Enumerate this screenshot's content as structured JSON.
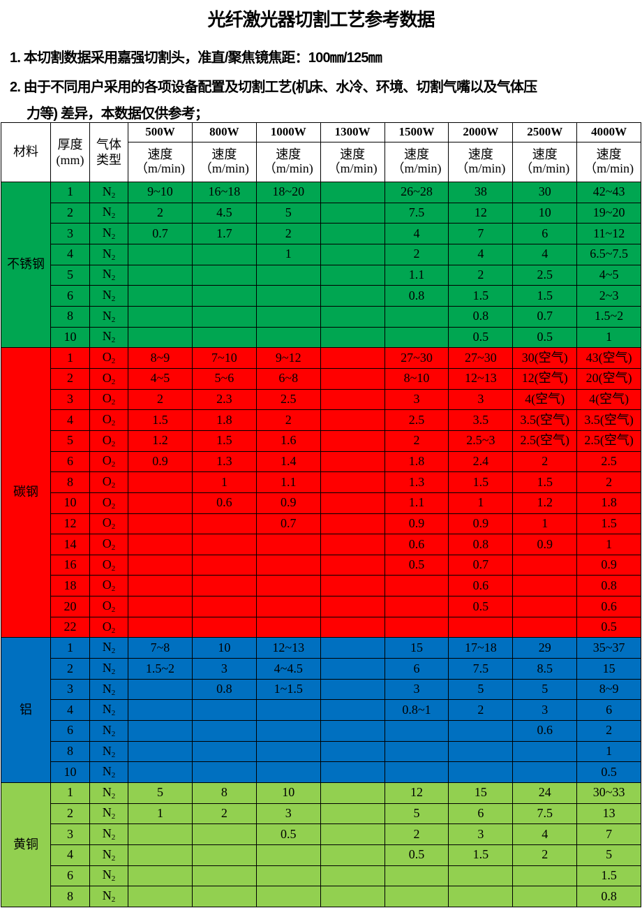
{
  "title": "光纤激光器切割工艺参考数据",
  "notes": [
    "1. 本切割数据采用嘉强切割头，准直/聚焦镜焦距：100㎜/125㎜",
    "2. 由于不同用户采用的各项设备配置及切割工艺(机床、水冷、环境、切割气嘴以及气体压",
    "力等) 差异，本数据仅供参考；"
  ],
  "headers": {
    "material": "材料",
    "thickness": "厚度(mm)",
    "gas": "气体类型",
    "speed": "速度",
    "unit": "（m/min)",
    "powers": [
      "500W",
      "800W",
      "1000W",
      "1300W",
      "1500W",
      "2000W",
      "2500W",
      "4000W"
    ]
  },
  "groups": [
    {
      "material": "不锈钢",
      "color": "#00a651",
      "gas": "N",
      "gas_sub": "2",
      "rows": [
        [
          "1",
          "9~10",
          "16~18",
          "18~20",
          "",
          "26~28",
          "38",
          "30",
          "42~43"
        ],
        [
          "2",
          "2",
          "4.5",
          "5",
          "",
          "7.5",
          "12",
          "10",
          "19~20"
        ],
        [
          "3",
          "0.7",
          "1.7",
          "2",
          "",
          "4",
          "7",
          "6",
          "11~12"
        ],
        [
          "4",
          "",
          "",
          "1",
          "",
          "2",
          "4",
          "4",
          "6.5~7.5"
        ],
        [
          "5",
          "",
          "",
          "",
          "",
          "1.1",
          "2",
          "2.5",
          "4~5"
        ],
        [
          "6",
          "",
          "",
          "",
          "",
          "0.8",
          "1.5",
          "1.5",
          "2~3"
        ],
        [
          "8",
          "",
          "",
          "",
          "",
          "",
          "0.8",
          "0.7",
          "1.5~2"
        ],
        [
          "10",
          "",
          "",
          "",
          "",
          "",
          "0.5",
          "0.5",
          "1"
        ]
      ]
    },
    {
      "material": "碳钢",
      "color": "#ff0000",
      "gas": "O",
      "gas_sub": "2",
      "rows": [
        [
          "1",
          "8~9",
          "7~10",
          "9~12",
          "",
          "27~30",
          "27~30",
          "30(空气)",
          "43(空气)"
        ],
        [
          "2",
          "4~5",
          "5~6",
          "6~8",
          "",
          "8~10",
          "12~13",
          "12(空气)",
          "20(空气)"
        ],
        [
          "3",
          "2",
          "2.3",
          "2.5",
          "",
          "3",
          "3",
          "4(空气)",
          "4(空气)"
        ],
        [
          "4",
          "1.5",
          "1.8",
          "2",
          "",
          "2.5",
          "3.5",
          "3.5(空气)",
          "3.5(空气)"
        ],
        [
          "5",
          "1.2",
          "1.5",
          "1.6",
          "",
          "2",
          "2.5~3",
          "2.5(空气)",
          "2.5(空气)"
        ],
        [
          "6",
          "0.9",
          "1.3",
          "1.4",
          "",
          "1.8",
          "2.4",
          "2",
          "2.5"
        ],
        [
          "8",
          "",
          "1",
          "1.1",
          "",
          "1.3",
          "1.5",
          "1.5",
          "2"
        ],
        [
          "10",
          "",
          "0.6",
          "0.9",
          "",
          "1.1",
          "1",
          "1.2",
          "1.8"
        ],
        [
          "12",
          "",
          "",
          "0.7",
          "",
          "0.9",
          "0.9",
          "1",
          "1.5"
        ],
        [
          "14",
          "",
          "",
          "",
          "",
          "0.6",
          "0.8",
          "0.9",
          "1"
        ],
        [
          "16",
          "",
          "",
          "",
          "",
          "0.5",
          "0.7",
          "",
          "0.9"
        ],
        [
          "18",
          "",
          "",
          "",
          "",
          "",
          "0.6",
          "",
          "0.8"
        ],
        [
          "20",
          "",
          "",
          "",
          "",
          "",
          "0.5",
          "",
          "0.6"
        ],
        [
          "22",
          "",
          "",
          "",
          "",
          "",
          "",
          "",
          "0.5"
        ]
      ]
    },
    {
      "material": "铝",
      "color": "#0070c0",
      "gas": "N",
      "gas_sub": "2",
      "rows": [
        [
          "1",
          "7~8",
          "10",
          "12~13",
          "",
          "15",
          "17~18",
          "29",
          "35~37"
        ],
        [
          "2",
          "1.5~2",
          "3",
          "4~4.5",
          "",
          "6",
          "7.5",
          "8.5",
          "15"
        ],
        [
          "3",
          "",
          "0.8",
          "1~1.5",
          "",
          "3",
          "5",
          "5",
          "8~9"
        ],
        [
          "4",
          "",
          "",
          "",
          "",
          "0.8~1",
          "2",
          "3",
          "6"
        ],
        [
          "6",
          "",
          "",
          "",
          "",
          "",
          "",
          "0.6",
          "2"
        ],
        [
          "8",
          "",
          "",
          "",
          "",
          "",
          "",
          "",
          "1"
        ],
        [
          "10",
          "",
          "",
          "",
          "",
          "",
          "",
          "",
          "0.5"
        ]
      ]
    },
    {
      "material": "黄铜",
      "color": "#92d050",
      "gas": "N",
      "gas_sub": "2",
      "rows": [
        [
          "1",
          "5",
          "8",
          "10",
          "",
          "12",
          "15",
          "24",
          "30~33"
        ],
        [
          "2",
          "1",
          "2",
          "3",
          "",
          "5",
          "6",
          "7.5",
          "13"
        ],
        [
          "3",
          "",
          "",
          "0.5",
          "",
          "2",
          "3",
          "4",
          "7"
        ],
        [
          "4",
          "",
          "",
          "",
          "",
          "0.5",
          "1.5",
          "2",
          "5"
        ],
        [
          "6",
          "",
          "",
          "",
          "",
          "",
          "",
          "",
          "1.5"
        ],
        [
          "8",
          "",
          "",
          "",
          "",
          "",
          "",
          "",
          "0.8"
        ]
      ]
    }
  ]
}
